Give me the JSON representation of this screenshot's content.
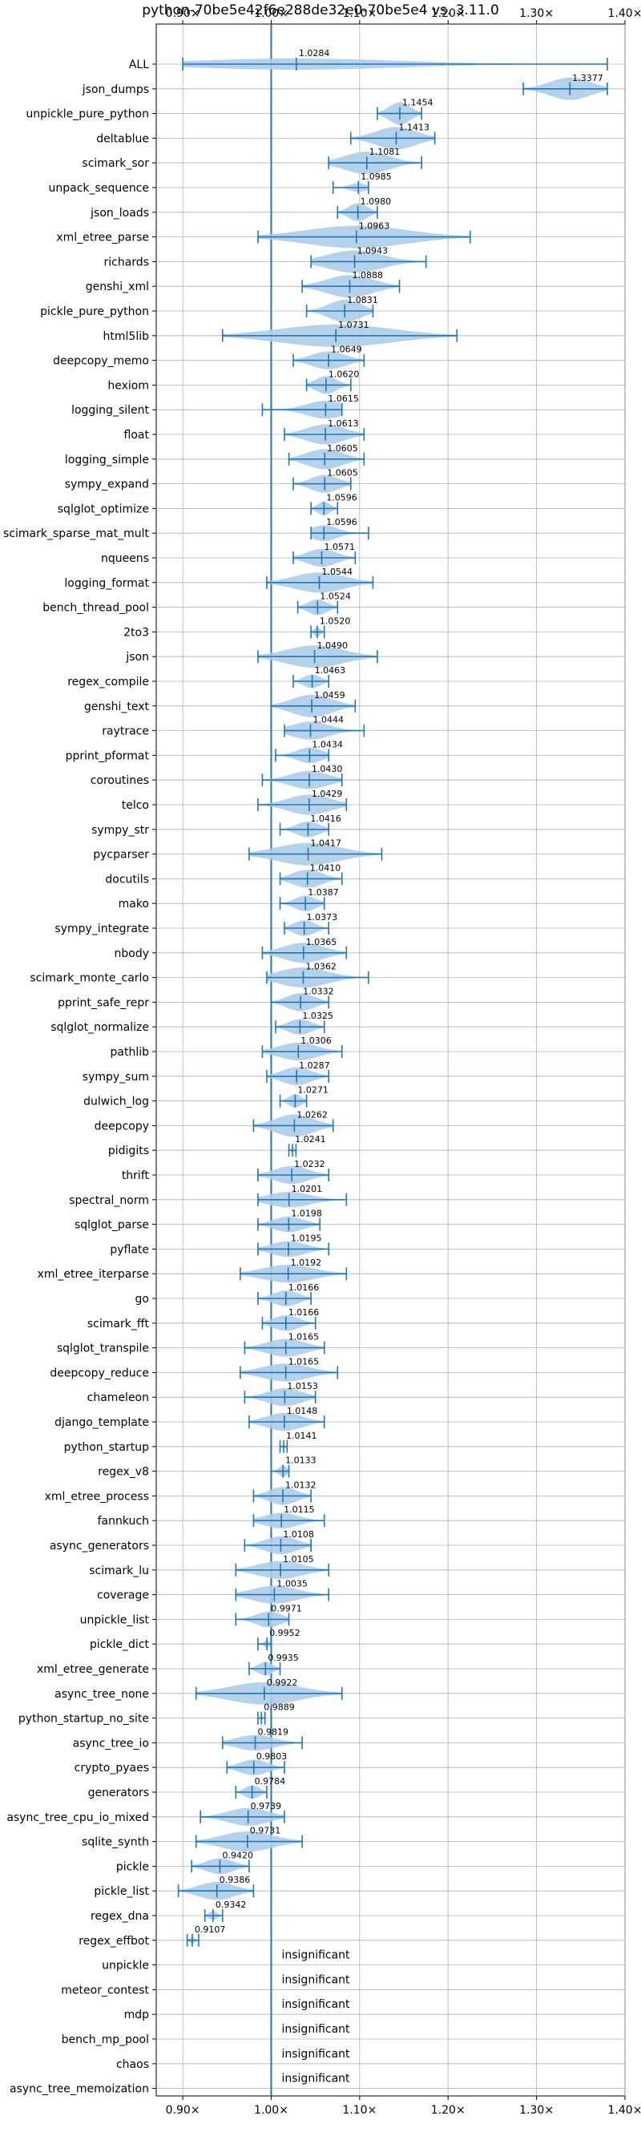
{
  "chart_data": {
    "type": "violin",
    "title": "python-70be5e42f6e288de32e0-70be5e4 vs. 3.11.0",
    "xlim": [
      0.87,
      1.4
    ],
    "xticks": [
      0.9,
      1.0,
      1.1,
      1.2,
      1.3,
      1.4
    ],
    "xtick_labels": [
      "0.90×",
      "1.00×",
      "1.10×",
      "1.20×",
      "1.30×",
      "1.40×"
    ],
    "grid": true,
    "reference_line": 1.0,
    "color": "#1f77b4",
    "fill_color": "#aecde8",
    "insignificant_label": "insignificant",
    "benchmarks": [
      {
        "name": "ALL",
        "value": 1.0284,
        "label": "1.0284",
        "min": 0.9,
        "max": 1.38,
        "width": 0.5
      },
      {
        "name": "json_dumps",
        "value": 1.3377,
        "label": "1.3377",
        "min": 1.285,
        "max": 1.38,
        "width": 1.0
      },
      {
        "name": "unpickle_pure_python",
        "value": 1.1454,
        "label": "1.1454",
        "min": 1.12,
        "max": 1.17,
        "width": 1.0
      },
      {
        "name": "deltablue",
        "value": 1.1413,
        "label": "1.1413",
        "min": 1.09,
        "max": 1.185,
        "width": 1.0
      },
      {
        "name": "scimark_sor",
        "value": 1.1081,
        "label": "1.1081",
        "min": 1.065,
        "max": 1.17,
        "width": 1.0
      },
      {
        "name": "unpack_sequence",
        "value": 1.0985,
        "label": "1.0985",
        "min": 1.07,
        "max": 1.11,
        "width": 0.4
      },
      {
        "name": "json_loads",
        "value": 1.098,
        "label": "1.0980",
        "min": 1.075,
        "max": 1.12,
        "width": 0.8
      },
      {
        "name": "xml_etree_parse",
        "value": 1.0963,
        "label": "1.0963",
        "min": 0.985,
        "max": 1.225,
        "width": 1.0
      },
      {
        "name": "richards",
        "value": 1.0943,
        "label": "1.0943",
        "min": 1.045,
        "max": 1.175,
        "width": 1.0
      },
      {
        "name": "genshi_xml",
        "value": 1.0888,
        "label": "1.0888",
        "min": 1.035,
        "max": 1.145,
        "width": 1.0
      },
      {
        "name": "pickle_pure_python",
        "value": 1.0831,
        "label": "1.0831",
        "min": 1.04,
        "max": 1.115,
        "width": 1.0
      },
      {
        "name": "html5lib",
        "value": 1.0731,
        "label": "1.0731",
        "min": 0.945,
        "max": 1.21,
        "width": 1.0
      },
      {
        "name": "deepcopy_memo",
        "value": 1.0649,
        "label": "1.0649",
        "min": 1.025,
        "max": 1.105,
        "width": 0.8
      },
      {
        "name": "hexiom",
        "value": 1.062,
        "label": "1.0620",
        "min": 1.04,
        "max": 1.09,
        "width": 0.8
      },
      {
        "name": "logging_silent",
        "value": 1.0615,
        "label": "1.0615",
        "min": 0.99,
        "max": 1.08,
        "width": 0.8
      },
      {
        "name": "float",
        "value": 1.0613,
        "label": "1.0613",
        "min": 1.015,
        "max": 1.105,
        "width": 0.9
      },
      {
        "name": "logging_simple",
        "value": 1.0605,
        "label": "1.0605",
        "min": 1.02,
        "max": 1.105,
        "width": 0.9
      },
      {
        "name": "sympy_expand",
        "value": 1.0605,
        "label": "1.0605",
        "min": 1.025,
        "max": 1.09,
        "width": 0.8
      },
      {
        "name": "sqlglot_optimize",
        "value": 1.0596,
        "label": "1.0596",
        "min": 1.045,
        "max": 1.075,
        "width": 0.6
      },
      {
        "name": "scimark_sparse_mat_mult",
        "value": 1.0596,
        "label": "1.0596",
        "min": 1.045,
        "max": 1.11,
        "width": 0.7
      },
      {
        "name": "nqueens",
        "value": 1.0571,
        "label": "1.0571",
        "min": 1.025,
        "max": 1.095,
        "width": 0.8
      },
      {
        "name": "logging_format",
        "value": 1.0544,
        "label": "1.0544",
        "min": 0.995,
        "max": 1.115,
        "width": 0.9
      },
      {
        "name": "bench_thread_pool",
        "value": 1.0524,
        "label": "1.0524",
        "min": 1.03,
        "max": 1.075,
        "width": 0.7
      },
      {
        "name": "2to3",
        "value": 1.052,
        "label": "1.0520",
        "min": 1.045,
        "max": 1.06,
        "width": 0.4
      },
      {
        "name": "json",
        "value": 1.049,
        "label": "1.0490",
        "min": 0.985,
        "max": 1.12,
        "width": 1.0
      },
      {
        "name": "regex_compile",
        "value": 1.0463,
        "label": "1.0463",
        "min": 1.025,
        "max": 1.065,
        "width": 0.6
      },
      {
        "name": "genshi_text",
        "value": 1.0459,
        "label": "1.0459",
        "min": 1.0,
        "max": 1.095,
        "width": 1.0
      },
      {
        "name": "raytrace",
        "value": 1.0444,
        "label": "1.0444",
        "min": 1.015,
        "max": 1.105,
        "width": 0.8
      },
      {
        "name": "pprint_pformat",
        "value": 1.0434,
        "label": "1.0434",
        "min": 1.005,
        "max": 1.065,
        "width": 0.7
      },
      {
        "name": "coroutines",
        "value": 1.043,
        "label": "1.0430",
        "min": 0.99,
        "max": 1.08,
        "width": 0.8
      },
      {
        "name": "telco",
        "value": 1.0429,
        "label": "1.0429",
        "min": 0.985,
        "max": 1.085,
        "width": 0.9
      },
      {
        "name": "sympy_str",
        "value": 1.0416,
        "label": "1.0416",
        "min": 1.01,
        "max": 1.065,
        "width": 0.7
      },
      {
        "name": "pycparser",
        "value": 1.0417,
        "label": "1.0417",
        "min": 0.975,
        "max": 1.125,
        "width": 1.0
      },
      {
        "name": "docutils",
        "value": 1.041,
        "label": "1.0410",
        "min": 1.01,
        "max": 1.08,
        "width": 0.8
      },
      {
        "name": "mako",
        "value": 1.0387,
        "label": "1.0387",
        "min": 1.01,
        "max": 1.06,
        "width": 0.7
      },
      {
        "name": "sympy_integrate",
        "value": 1.0373,
        "label": "1.0373",
        "min": 1.015,
        "max": 1.065,
        "width": 0.7
      },
      {
        "name": "nbody",
        "value": 1.0365,
        "label": "1.0365",
        "min": 0.99,
        "max": 1.085,
        "width": 0.9
      },
      {
        "name": "scimark_monte_carlo",
        "value": 1.0362,
        "label": "1.0362",
        "min": 0.995,
        "max": 1.11,
        "width": 0.9
      },
      {
        "name": "pprint_safe_repr",
        "value": 1.0332,
        "label": "1.0332",
        "min": 1.0,
        "max": 1.065,
        "width": 0.8
      },
      {
        "name": "sqlglot_normalize",
        "value": 1.0325,
        "label": "1.0325",
        "min": 1.005,
        "max": 1.06,
        "width": 0.7
      },
      {
        "name": "pathlib",
        "value": 1.0306,
        "label": "1.0306",
        "min": 0.99,
        "max": 1.08,
        "width": 0.8
      },
      {
        "name": "sympy_sum",
        "value": 1.0287,
        "label": "1.0287",
        "min": 0.995,
        "max": 1.065,
        "width": 0.8
      },
      {
        "name": "dulwich_log",
        "value": 1.0271,
        "label": "1.0271",
        "min": 1.01,
        "max": 1.04,
        "width": 0.6
      },
      {
        "name": "deepcopy",
        "value": 1.0262,
        "label": "1.0262",
        "min": 0.98,
        "max": 1.07,
        "width": 1.0
      },
      {
        "name": "pidigits",
        "value": 1.0241,
        "label": "1.0241",
        "min": 1.02,
        "max": 1.028,
        "width": 0.15
      },
      {
        "name": "thrift",
        "value": 1.0232,
        "label": "1.0232",
        "min": 0.985,
        "max": 1.065,
        "width": 0.8
      },
      {
        "name": "spectral_norm",
        "value": 1.0201,
        "label": "1.0201",
        "min": 0.985,
        "max": 1.085,
        "width": 0.7
      },
      {
        "name": "sqlglot_parse",
        "value": 1.0198,
        "label": "1.0198",
        "min": 0.985,
        "max": 1.055,
        "width": 0.7
      },
      {
        "name": "pyflate",
        "value": 1.0195,
        "label": "1.0195",
        "min": 0.985,
        "max": 1.065,
        "width": 0.7
      },
      {
        "name": "xml_etree_iterparse",
        "value": 1.0192,
        "label": "1.0192",
        "min": 0.965,
        "max": 1.085,
        "width": 0.8
      },
      {
        "name": "go",
        "value": 1.0166,
        "label": "1.0166",
        "min": 0.985,
        "max": 1.045,
        "width": 0.7
      },
      {
        "name": "scimark_fft",
        "value": 1.0166,
        "label": "1.0166",
        "min": 0.99,
        "max": 1.05,
        "width": 0.7
      },
      {
        "name": "sqlglot_transpile",
        "value": 1.0165,
        "label": "1.0165",
        "min": 0.97,
        "max": 1.06,
        "width": 0.8
      },
      {
        "name": "deepcopy_reduce",
        "value": 1.0165,
        "label": "1.0165",
        "min": 0.965,
        "max": 1.075,
        "width": 0.8
      },
      {
        "name": "chameleon",
        "value": 1.0153,
        "label": "1.0153",
        "min": 0.97,
        "max": 1.05,
        "width": 0.8
      },
      {
        "name": "django_template",
        "value": 1.0148,
        "label": "1.0148",
        "min": 0.975,
        "max": 1.06,
        "width": 0.8
      },
      {
        "name": "python_startup",
        "value": 1.0141,
        "label": "1.0141",
        "min": 1.01,
        "max": 1.018,
        "width": 0.15
      },
      {
        "name": "regex_v8",
        "value": 1.0133,
        "label": "1.0133",
        "min": 1.0,
        "max": 1.02,
        "width": 0.5
      },
      {
        "name": "xml_etree_process",
        "value": 1.0132,
        "label": "1.0132",
        "min": 0.98,
        "max": 1.045,
        "width": 0.8
      },
      {
        "name": "fannkuch",
        "value": 1.0115,
        "label": "1.0115",
        "min": 0.98,
        "max": 1.06,
        "width": 0.7
      },
      {
        "name": "async_generators",
        "value": 1.0108,
        "label": "1.0108",
        "min": 0.97,
        "max": 1.045,
        "width": 0.8
      },
      {
        "name": "scimark_lu",
        "value": 1.0105,
        "label": "1.0105",
        "min": 0.96,
        "max": 1.065,
        "width": 0.8
      },
      {
        "name": "coverage",
        "value": 1.0035,
        "label": "1.0035",
        "min": 0.96,
        "max": 1.065,
        "width": 0.8
      },
      {
        "name": "unpickle_list",
        "value": 0.9971,
        "label": "0.9971",
        "min": 0.96,
        "max": 1.02,
        "width": 0.7
      },
      {
        "name": "pickle_dict",
        "value": 0.9952,
        "label": "0.9952",
        "min": 0.985,
        "max": 1.0,
        "width": 0.3
      },
      {
        "name": "xml_etree_generate",
        "value": 0.9935,
        "label": "0.9935",
        "min": 0.975,
        "max": 1.01,
        "width": 0.6
      },
      {
        "name": "async_tree_none",
        "value": 0.9922,
        "label": "0.9922",
        "min": 0.915,
        "max": 1.08,
        "width": 1.0
      },
      {
        "name": "python_startup_no_site",
        "value": 0.9889,
        "label": "0.9889",
        "min": 0.985,
        "max": 0.993,
        "width": 0.15
      },
      {
        "name": "async_tree_io",
        "value": 0.9819,
        "label": "0.9819",
        "min": 0.945,
        "max": 1.035,
        "width": 0.7
      },
      {
        "name": "crypto_pyaes",
        "value": 0.9803,
        "label": "0.9803",
        "min": 0.95,
        "max": 1.015,
        "width": 0.7
      },
      {
        "name": "generators",
        "value": 0.9784,
        "label": "0.9784",
        "min": 0.96,
        "max": 0.995,
        "width": 0.6
      },
      {
        "name": "async_tree_cpu_io_mixed",
        "value": 0.9739,
        "label": "0.9739",
        "min": 0.92,
        "max": 1.015,
        "width": 0.8
      },
      {
        "name": "sqlite_synth",
        "value": 0.9731,
        "label": "0.9731",
        "min": 0.915,
        "max": 1.035,
        "width": 0.9
      },
      {
        "name": "pickle",
        "value": 0.942,
        "label": "0.9420",
        "min": 0.91,
        "max": 0.975,
        "width": 0.7
      },
      {
        "name": "pickle_list",
        "value": 0.9386,
        "label": "0.9386",
        "min": 0.895,
        "max": 0.98,
        "width": 0.8
      },
      {
        "name": "regex_dna",
        "value": 0.9342,
        "label": "0.9342",
        "min": 0.925,
        "max": 0.945,
        "width": 0.4
      },
      {
        "name": "regex_effbot",
        "value": 0.9107,
        "label": "0.9107",
        "min": 0.905,
        "max": 0.918,
        "width": 0.3
      },
      {
        "name": "unpickle",
        "value": null,
        "label": "insignificant"
      },
      {
        "name": "meteor_contest",
        "value": null,
        "label": "insignificant"
      },
      {
        "name": "mdp",
        "value": null,
        "label": "insignificant"
      },
      {
        "name": "bench_mp_pool",
        "value": null,
        "label": "insignificant"
      },
      {
        "name": "chaos",
        "value": null,
        "label": "insignificant"
      },
      {
        "name": "async_tree_memoization",
        "value": null,
        "label": "insignificant"
      }
    ]
  }
}
